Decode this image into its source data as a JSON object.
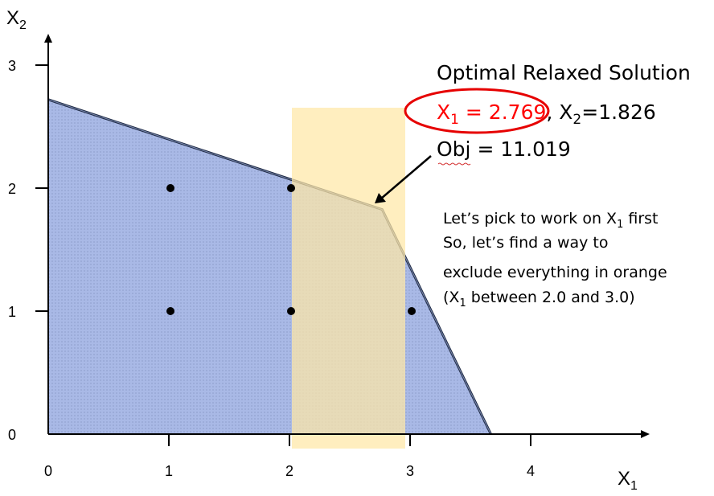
{
  "axes": {
    "x_title": "X",
    "x_title_sub": "1",
    "y_title": "X",
    "y_title_sub": "2",
    "x_ticks": [
      "0",
      "1",
      "2",
      "3",
      "4"
    ],
    "y_ticks": [
      "0",
      "1",
      "2",
      "3"
    ]
  },
  "feasible_region": {
    "vertices": [
      [
        0,
        0
      ],
      [
        0,
        2.72
      ],
      [
        2.769,
        1.826
      ],
      [
        3.67,
        0
      ]
    ],
    "fill_color": "#a9b9e6",
    "outline_color": "#1f2a44"
  },
  "orange_band": {
    "x_range": [
      2.0,
      3.0
    ],
    "color": "#ffe7a6"
  },
  "integer_points": [
    [
      1,
      1
    ],
    [
      2,
      1
    ],
    [
      3,
      1
    ],
    [
      1,
      2
    ],
    [
      2,
      2
    ]
  ],
  "annotation": {
    "title": "Optimal Relaxed Solution",
    "x1_prefix": "X",
    "x1_sub": "1",
    "x1_value": " = 2.769",
    "separator": ", X",
    "x2_sub": "2",
    "x2_value": "=1.826",
    "obj": "Obj = 11.019",
    "highlight_color": "#ff0000"
  },
  "note": {
    "line1_a": "Let’s pick to work on X",
    "line1_sub": "1",
    "line1_b": "  first",
    "line2": "So, let’s find a way to",
    "line3": "exclude everything in orange",
    "line4_a": "(X",
    "line4_sub": "1",
    "line4_b": " between 2.0 and 3.0)"
  }
}
